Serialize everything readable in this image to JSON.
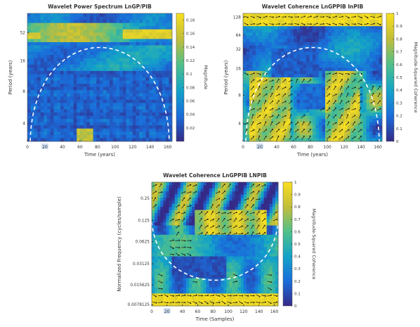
{
  "colormap": [
    "#352a87",
    "#1a6ddb",
    "#13a3c8",
    "#50c08a",
    "#c1bd3a",
    "#f9e01f"
  ],
  "coi_color": "#ffffff",
  "highlight_color": "#cfe0f5",
  "chart_data": [
    {
      "type": "heatmap",
      "title": "Wavelet Power Spectrum LnGP/PIB",
      "xlabel": "Time (years)",
      "ylabel": "Period (years)",
      "xlim": [
        0,
        165
      ],
      "x_ticks": [
        "0",
        "20",
        "40",
        "60",
        "80",
        "100",
        "120",
        "140",
        "160"
      ],
      "x_tick_values": [
        0,
        20,
        40,
        60,
        80,
        100,
        120,
        140,
        160
      ],
      "highlighted_x_tick": "20",
      "y_ticks": [
        "4",
        "8",
        "16",
        "52"
      ],
      "y_scale": "log",
      "colorbar_label": "Magnitude",
      "colorbar_ticks": [
        "0.02",
        "0.04",
        "0.06",
        "0.08",
        "0.1",
        "0.12",
        "0.14",
        "0.16",
        "0.18"
      ],
      "colorbar_range": [
        0,
        0.19
      ],
      "cone_of_influence": "dashed",
      "arrows": false
    },
    {
      "type": "heatmap",
      "title": "Wavelet Coherence LnGPPIB lnPIB",
      "xlabel": "Time (years)",
      "ylabel": "Period (years)",
      "xlim": [
        0,
        165
      ],
      "x_ticks": [
        "0",
        "20",
        "40",
        "60",
        "80",
        "100",
        "120",
        "140",
        "160"
      ],
      "x_tick_values": [
        0,
        20,
        40,
        60,
        80,
        100,
        120,
        140,
        160
      ],
      "highlighted_x_tick": "20",
      "y_ticks": [
        "4",
        "8",
        "16",
        "32",
        "64",
        "128"
      ],
      "y_scale": "log",
      "colorbar_label": "Magnitude-Squared Coherence",
      "colorbar_ticks": [
        "0",
        "0.1",
        "0.2",
        "0.3",
        "0.4",
        "0.5",
        "0.6",
        "0.7",
        "0.8",
        "0.9",
        "1"
      ],
      "colorbar_range": [
        0,
        1
      ],
      "cone_of_influence": "dashed",
      "arrows": true
    },
    {
      "type": "heatmap",
      "title": "Wavelet Coherence LnGPPIB LNPIB",
      "xlabel": "Time (Samples)",
      "ylabel": "Normalized Frequency (cycles/sample)",
      "xlim": [
        0,
        165
      ],
      "x_ticks": [
        "0",
        "20",
        "40",
        "60",
        "80",
        "100",
        "120",
        "140",
        "160"
      ],
      "x_tick_values": [
        0,
        20,
        40,
        60,
        80,
        100,
        120,
        140,
        160
      ],
      "highlighted_x_tick": "20",
      "y_ticks": [
        "0.25",
        "0.125",
        "0.0625",
        "0.03125",
        "0.015625",
        "0.0078125"
      ],
      "y_scale": "log",
      "colorbar_label": "Magnitude-Squared Coherence",
      "colorbar_ticks": [
        "0",
        "0.1",
        "0.2",
        "0.3",
        "0.4",
        "0.5",
        "0.6",
        "0.7",
        "0.8",
        "0.9",
        "1"
      ],
      "colorbar_range": [
        0,
        1
      ],
      "cone_of_influence": "dashed",
      "arrows": true
    }
  ]
}
